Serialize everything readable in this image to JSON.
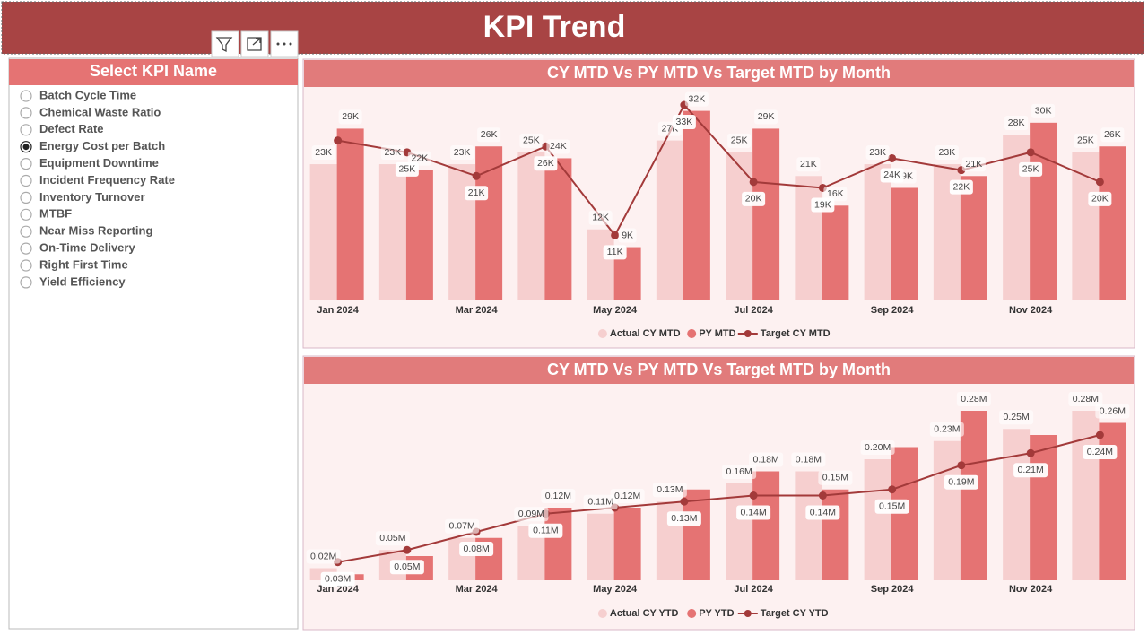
{
  "header": {
    "title": "KPI Trend"
  },
  "slicer": {
    "title": "Select KPI Name",
    "items": [
      "Batch Cycle Time",
      "Chemical Waste Ratio",
      "Defect Rate",
      "Energy Cost per Batch",
      "Equipment Downtime",
      "Incident Frequency Rate",
      "Inventory Turnover",
      "MTBF",
      "Near Miss Reporting",
      "On-Time Delivery",
      "Right First Time",
      "Yield Efficiency"
    ],
    "selected_index": 3
  },
  "chart_data": [
    {
      "type": "combo",
      "title": "CY MTD Vs PY MTD Vs Target MTD by Month",
      "categories": [
        "Jan 2024",
        null,
        "Mar 2024",
        null,
        "May 2024",
        null,
        "Jul 2024",
        null,
        "Sep 2024",
        null,
        "Nov 2024",
        null
      ],
      "series": [
        {
          "name": "Actual CY MTD",
          "type": "bar",
          "color": "#f6cfcf",
          "values": [
            23000,
            23000,
            23000,
            25000,
            12000,
            27000,
            25000,
            21000,
            23000,
            23000,
            28000,
            25000
          ],
          "value_labels": [
            "23K",
            "23K",
            "23K",
            "25K",
            "12K",
            "27K",
            "25K",
            "21K",
            "23K",
            "23K",
            "28K",
            "25K"
          ]
        },
        {
          "name": "PY MTD",
          "type": "bar",
          "color": "#e57373",
          "values": [
            29000,
            22000,
            26000,
            24000,
            9000,
            32000,
            29000,
            16000,
            19000,
            21000,
            30000,
            26000
          ],
          "value_labels": [
            "29K",
            "22K",
            "26K",
            "24K",
            "9K",
            "32K",
            "29K",
            "16K",
            "19K",
            "21K",
            "30K",
            "26K"
          ]
        },
        {
          "name": "Target CY MTD",
          "type": "line",
          "color": "#a33a3a",
          "values": [
            27000,
            25000,
            21000,
            26000,
            11000,
            33000,
            20000,
            19000,
            24000,
            22000,
            25000,
            20000
          ],
          "value_labels": [
            null,
            "25K",
            "21K",
            "26K",
            "11K",
            "33K",
            "20K",
            "19K",
            "24K",
            "22K",
            "25K",
            "20K"
          ]
        }
      ]
    },
    {
      "type": "combo",
      "title": "CY MTD Vs PY MTD Vs Target MTD by Month",
      "categories": [
        "Jan 2024",
        null,
        "Mar 2024",
        null,
        "May 2024",
        null,
        "Jul 2024",
        null,
        "Sep 2024",
        null,
        "Nov 2024",
        null
      ],
      "series": [
        {
          "name": "Actual CY YTD",
          "type": "bar",
          "color": "#f6cfcf",
          "values": [
            20000,
            50000,
            70000,
            90000,
            110000,
            130000,
            160000,
            180000,
            200000,
            230000,
            250000,
            280000
          ],
          "value_labels": [
            "0.02M",
            "0.05M",
            "0.07M",
            "0.09M",
            "0.11M",
            "0.13M",
            "0.16M",
            "0.18M",
            "0.20M",
            "0.23M",
            "0.25M",
            "0.28M"
          ]
        },
        {
          "name": "PY YTD",
          "type": "bar",
          "color": "#e57373",
          "values": [
            10000,
            40000,
            70000,
            120000,
            120000,
            150000,
            180000,
            150000,
            220000,
            280000,
            240000,
            260000
          ],
          "value_labels": [
            null,
            null,
            null,
            "0.12M",
            "0.12M",
            null,
            "0.18M",
            "0.15M",
            null,
            "0.28M",
            null,
            "0.26M"
          ]
        },
        {
          "name": "Target CY YTD",
          "type": "line",
          "color": "#a33a3a",
          "values": [
            30000,
            50000,
            80000,
            110000,
            120000,
            130000,
            140000,
            140000,
            150000,
            190000,
            210000,
            240000
          ],
          "value_labels": [
            "0.03M",
            "0.05M",
            "0.08M",
            "0.11M",
            null,
            "0.13M",
            "0.14M",
            "0.14M",
            "0.15M",
            "0.19M",
            "0.21M",
            "0.24M"
          ]
        }
      ]
    }
  ]
}
